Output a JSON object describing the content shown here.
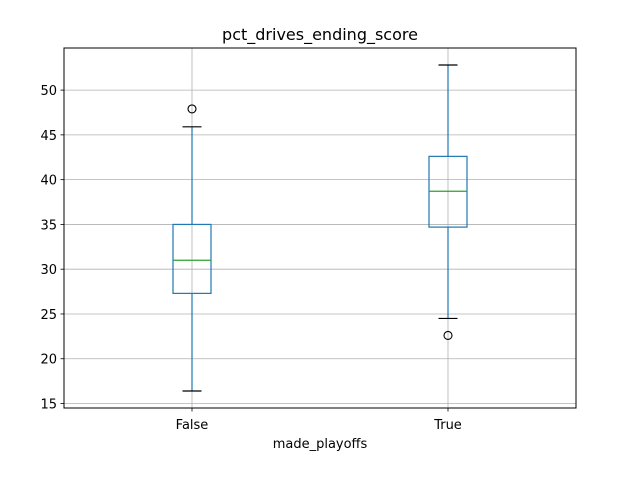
{
  "chart_data": {
    "type": "boxplot",
    "title": "pct_drives_ending_score",
    "xlabel": "made_playoffs",
    "ylabel": "",
    "categories": [
      "False",
      "True"
    ],
    "ylim": [
      14.5,
      54.7
    ],
    "yticks": [
      15,
      20,
      25,
      30,
      35,
      40,
      45,
      50
    ],
    "grid": true,
    "boxes": [
      {
        "category": "False",
        "whisker_low": 16.4,
        "q1": 27.3,
        "median": 31.0,
        "q3": 35.0,
        "whisker_high": 45.9,
        "outliers": [
          47.9
        ]
      },
      {
        "category": "True",
        "whisker_low": 24.5,
        "q1": 34.7,
        "median": 38.7,
        "q3": 42.6,
        "whisker_high": 52.8,
        "outliers": [
          22.6
        ]
      }
    ],
    "colors": {
      "box": "#1f77b4",
      "median": "#2ca02c",
      "grid": "#b0b0b0",
      "outlier_edge": "#000000"
    }
  }
}
